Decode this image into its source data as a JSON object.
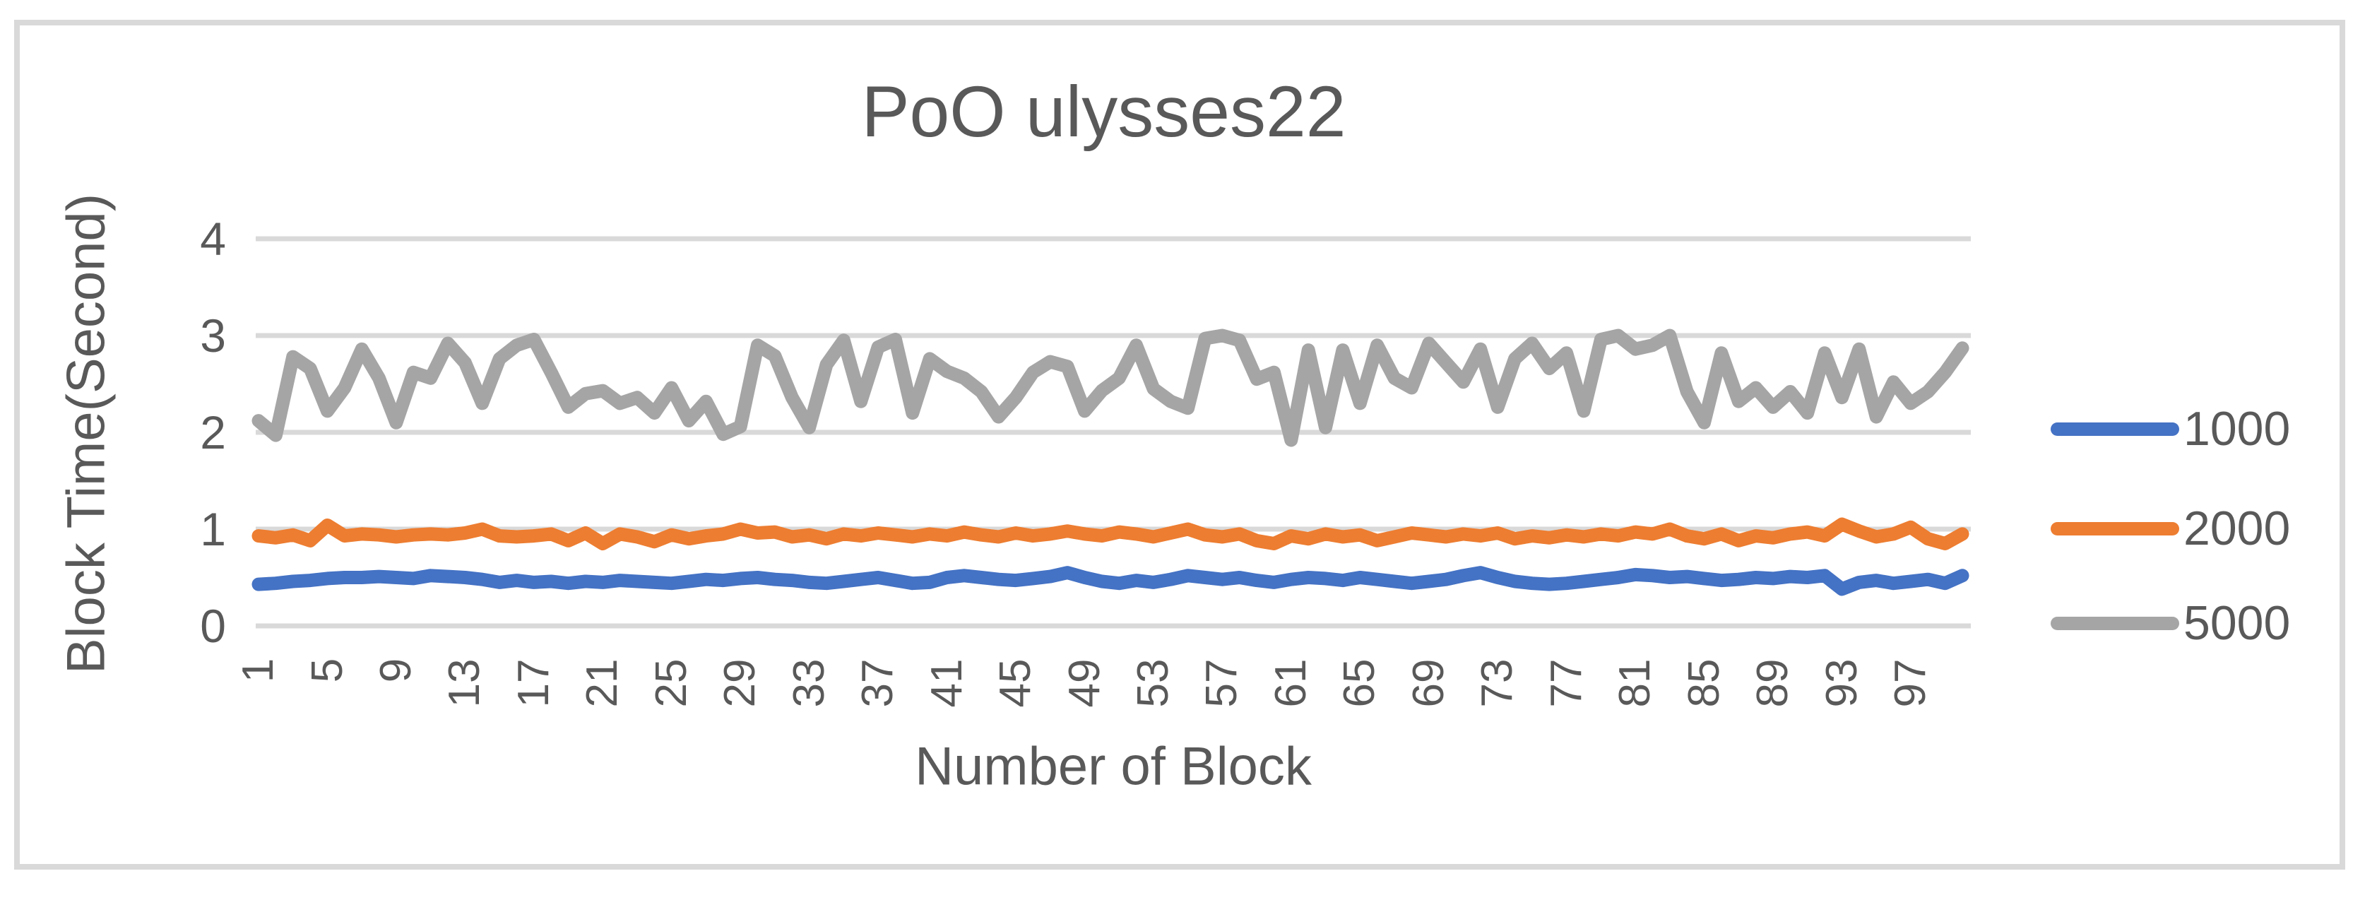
{
  "title": "PoO ulysses22",
  "chart_data": {
    "type": "line",
    "title": "PoO ulysses22",
    "xlabel": "Number of Block",
    "ylabel": "Block Time(Second)",
    "ylim": [
      0,
      4
    ],
    "yticks": [
      "0",
      "1",
      "2",
      "3",
      "4"
    ],
    "x_categories_start": 1,
    "x_categories_end": 100,
    "xtick_labels": [
      "1",
      "5",
      "9",
      "13",
      "17",
      "21",
      "25",
      "29",
      "33",
      "37",
      "41",
      "45",
      "49",
      "53",
      "57",
      "61",
      "65",
      "69",
      "73",
      "77",
      "81",
      "85",
      "89",
      "93",
      "97"
    ],
    "grid": true,
    "legend_position": "right",
    "gridline_color": "#D9D9D9",
    "frame_border_color": "#D9D9D9",
    "text_color": "#595959",
    "series": [
      {
        "name": "1000",
        "color": "#4472C4",
        "values": [
          0.43,
          0.44,
          0.46,
          0.47,
          0.49,
          0.5,
          0.5,
          0.51,
          0.5,
          0.49,
          0.52,
          0.51,
          0.5,
          0.48,
          0.45,
          0.47,
          0.45,
          0.46,
          0.44,
          0.46,
          0.45,
          0.47,
          0.46,
          0.45,
          0.44,
          0.46,
          0.48,
          0.47,
          0.49,
          0.5,
          0.48,
          0.47,
          0.45,
          0.44,
          0.46,
          0.48,
          0.5,
          0.47,
          0.44,
          0.45,
          0.5,
          0.52,
          0.5,
          0.48,
          0.47,
          0.49,
          0.51,
          0.55,
          0.5,
          0.46,
          0.44,
          0.47,
          0.45,
          0.48,
          0.52,
          0.5,
          0.48,
          0.5,
          0.47,
          0.45,
          0.48,
          0.5,
          0.49,
          0.47,
          0.5,
          0.48,
          0.46,
          0.44,
          0.46,
          0.48,
          0.52,
          0.55,
          0.5,
          0.46,
          0.44,
          0.43,
          0.44,
          0.46,
          0.48,
          0.5,
          0.53,
          0.52,
          0.5,
          0.51,
          0.49,
          0.47,
          0.48,
          0.5,
          0.49,
          0.51,
          0.5,
          0.52,
          0.38,
          0.45,
          0.47,
          0.44,
          0.46,
          0.48,
          0.44,
          0.52
        ]
      },
      {
        "name": "2000",
        "color": "#ED7D31",
        "values": [
          0.93,
          0.91,
          0.94,
          0.88,
          1.04,
          0.93,
          0.95,
          0.94,
          0.92,
          0.94,
          0.95,
          0.94,
          0.96,
          1.0,
          0.93,
          0.92,
          0.93,
          0.95,
          0.88,
          0.96,
          0.85,
          0.95,
          0.92,
          0.87,
          0.94,
          0.9,
          0.93,
          0.95,
          1.0,
          0.96,
          0.97,
          0.92,
          0.94,
          0.9,
          0.95,
          0.93,
          0.96,
          0.94,
          0.92,
          0.95,
          0.93,
          0.97,
          0.94,
          0.92,
          0.96,
          0.93,
          0.95,
          0.98,
          0.95,
          0.93,
          0.97,
          0.95,
          0.92,
          0.96,
          1.0,
          0.94,
          0.92,
          0.95,
          0.88,
          0.85,
          0.93,
          0.9,
          0.95,
          0.92,
          0.94,
          0.88,
          0.92,
          0.96,
          0.94,
          0.92,
          0.95,
          0.93,
          0.96,
          0.9,
          0.93,
          0.91,
          0.94,
          0.92,
          0.95,
          0.93,
          0.97,
          0.95,
          1.0,
          0.93,
          0.9,
          0.95,
          0.88,
          0.93,
          0.91,
          0.95,
          0.97,
          0.93,
          1.05,
          0.98,
          0.92,
          0.95,
          1.02,
          0.9,
          0.85,
          0.95
        ]
      },
      {
        "name": "5000",
        "color": "#A5A5A5",
        "values": [
          2.12,
          1.97,
          2.78,
          2.66,
          2.22,
          2.46,
          2.86,
          2.56,
          2.1,
          2.62,
          2.56,
          2.92,
          2.72,
          2.3,
          2.76,
          2.9,
          2.96,
          2.62,
          2.26,
          2.4,
          2.43,
          2.3,
          2.36,
          2.2,
          2.46,
          2.12,
          2.32,
          1.98,
          2.06,
          2.9,
          2.79,
          2.36,
          2.05,
          2.7,
          2.95,
          2.32,
          2.88,
          2.96,
          2.2,
          2.76,
          2.63,
          2.56,
          2.42,
          2.16,
          2.36,
          2.62,
          2.73,
          2.68,
          2.22,
          2.43,
          2.56,
          2.9,
          2.45,
          2.32,
          2.25,
          2.97,
          3.0,
          2.95,
          2.55,
          2.62,
          1.92,
          2.85,
          2.05,
          2.85,
          2.3,
          2.9,
          2.56,
          2.46,
          2.92,
          2.72,
          2.52,
          2.86,
          2.26,
          2.76,
          2.92,
          2.66,
          2.82,
          2.22,
          2.96,
          3.0,
          2.86,
          2.9,
          3.0,
          2.42,
          2.1,
          2.82,
          2.32,
          2.46,
          2.26,
          2.42,
          2.2,
          2.82,
          2.36,
          2.86,
          2.16,
          2.52,
          2.3,
          2.42,
          2.62,
          2.87
        ]
      }
    ]
  }
}
